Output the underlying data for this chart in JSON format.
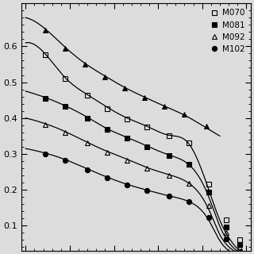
{
  "ylim": [
    0.03,
    0.72
  ],
  "xlim": [
    -0.02,
    1.02
  ],
  "yticks": [
    0.1,
    0.2,
    0.3,
    0.4,
    0.5,
    0.6
  ],
  "legend_labels": [
    "M070",
    "M081",
    "M092",
    "M102"
  ],
  "background_color": "#dcdcdc",
  "series": {
    "top_filled_tri": {
      "points_x": [
        0.09,
        0.18,
        0.27,
        0.36,
        0.45,
        0.54,
        0.63,
        0.72,
        0.82
      ],
      "points_y": [
        0.645,
        0.595,
        0.55,
        0.515,
        0.483,
        0.457,
        0.432,
        0.41,
        0.378
      ],
      "curve_x": [
        0.0,
        0.09,
        0.18,
        0.27,
        0.36,
        0.45,
        0.54,
        0.63,
        0.72,
        0.82,
        0.88
      ],
      "curve_y": [
        0.68,
        0.648,
        0.597,
        0.552,
        0.517,
        0.485,
        0.458,
        0.433,
        0.408,
        0.372,
        0.35
      ]
    },
    "M070": {
      "marker": "s",
      "facecolor": "none",
      "points_x": [
        0.09,
        0.18,
        0.28,
        0.37,
        0.46,
        0.55,
        0.65,
        0.74,
        0.83,
        0.91,
        0.97
      ],
      "points_y": [
        0.576,
        0.51,
        0.463,
        0.427,
        0.397,
        0.375,
        0.35,
        0.33,
        0.215,
        0.115,
        0.06
      ],
      "curve_x": [
        0.0,
        0.09,
        0.18,
        0.28,
        0.37,
        0.46,
        0.55,
        0.65,
        0.74,
        0.83,
        0.88,
        0.93,
        0.99
      ],
      "curve_y": [
        0.61,
        0.578,
        0.512,
        0.465,
        0.43,
        0.4,
        0.377,
        0.352,
        0.328,
        0.2,
        0.115,
        0.058,
        0.018
      ]
    },
    "M081": {
      "marker": "s",
      "facecolor": "black",
      "points_x": [
        0.09,
        0.18,
        0.28,
        0.37,
        0.46,
        0.55,
        0.65,
        0.74,
        0.83,
        0.91,
        0.97
      ],
      "points_y": [
        0.455,
        0.432,
        0.4,
        0.368,
        0.344,
        0.32,
        0.296,
        0.272,
        0.193,
        0.095,
        0.048
      ],
      "curve_x": [
        0.0,
        0.09,
        0.18,
        0.28,
        0.37,
        0.46,
        0.55,
        0.65,
        0.74,
        0.83,
        0.88,
        0.93,
        0.99
      ],
      "curve_y": [
        0.475,
        0.457,
        0.434,
        0.402,
        0.37,
        0.346,
        0.322,
        0.297,
        0.27,
        0.18,
        0.098,
        0.046,
        0.014
      ]
    },
    "M092": {
      "marker": "^",
      "facecolor": "none",
      "points_x": [
        0.09,
        0.18,
        0.28,
        0.37,
        0.46,
        0.55,
        0.65,
        0.74,
        0.83,
        0.91,
        0.97
      ],
      "points_y": [
        0.382,
        0.36,
        0.33,
        0.305,
        0.283,
        0.26,
        0.24,
        0.218,
        0.155,
        0.08,
        0.038
      ],
      "curve_x": [
        0.0,
        0.09,
        0.18,
        0.28,
        0.37,
        0.46,
        0.55,
        0.65,
        0.74,
        0.83,
        0.88,
        0.93,
        0.99
      ],
      "curve_y": [
        0.4,
        0.384,
        0.362,
        0.332,
        0.307,
        0.285,
        0.262,
        0.242,
        0.218,
        0.145,
        0.075,
        0.036,
        0.01
      ]
    },
    "M102": {
      "marker": "o",
      "facecolor": "black",
      "points_x": [
        0.09,
        0.18,
        0.28,
        0.37,
        0.46,
        0.55,
        0.65,
        0.74,
        0.83,
        0.91,
        0.97
      ],
      "points_y": [
        0.3,
        0.282,
        0.256,
        0.233,
        0.213,
        0.197,
        0.182,
        0.168,
        0.122,
        0.062,
        0.028
      ],
      "curve_x": [
        0.0,
        0.09,
        0.18,
        0.28,
        0.37,
        0.46,
        0.55,
        0.65,
        0.74,
        0.83,
        0.88,
        0.93,
        0.99
      ],
      "curve_y": [
        0.315,
        0.302,
        0.284,
        0.258,
        0.235,
        0.215,
        0.199,
        0.183,
        0.167,
        0.115,
        0.058,
        0.026,
        0.007
      ]
    }
  }
}
